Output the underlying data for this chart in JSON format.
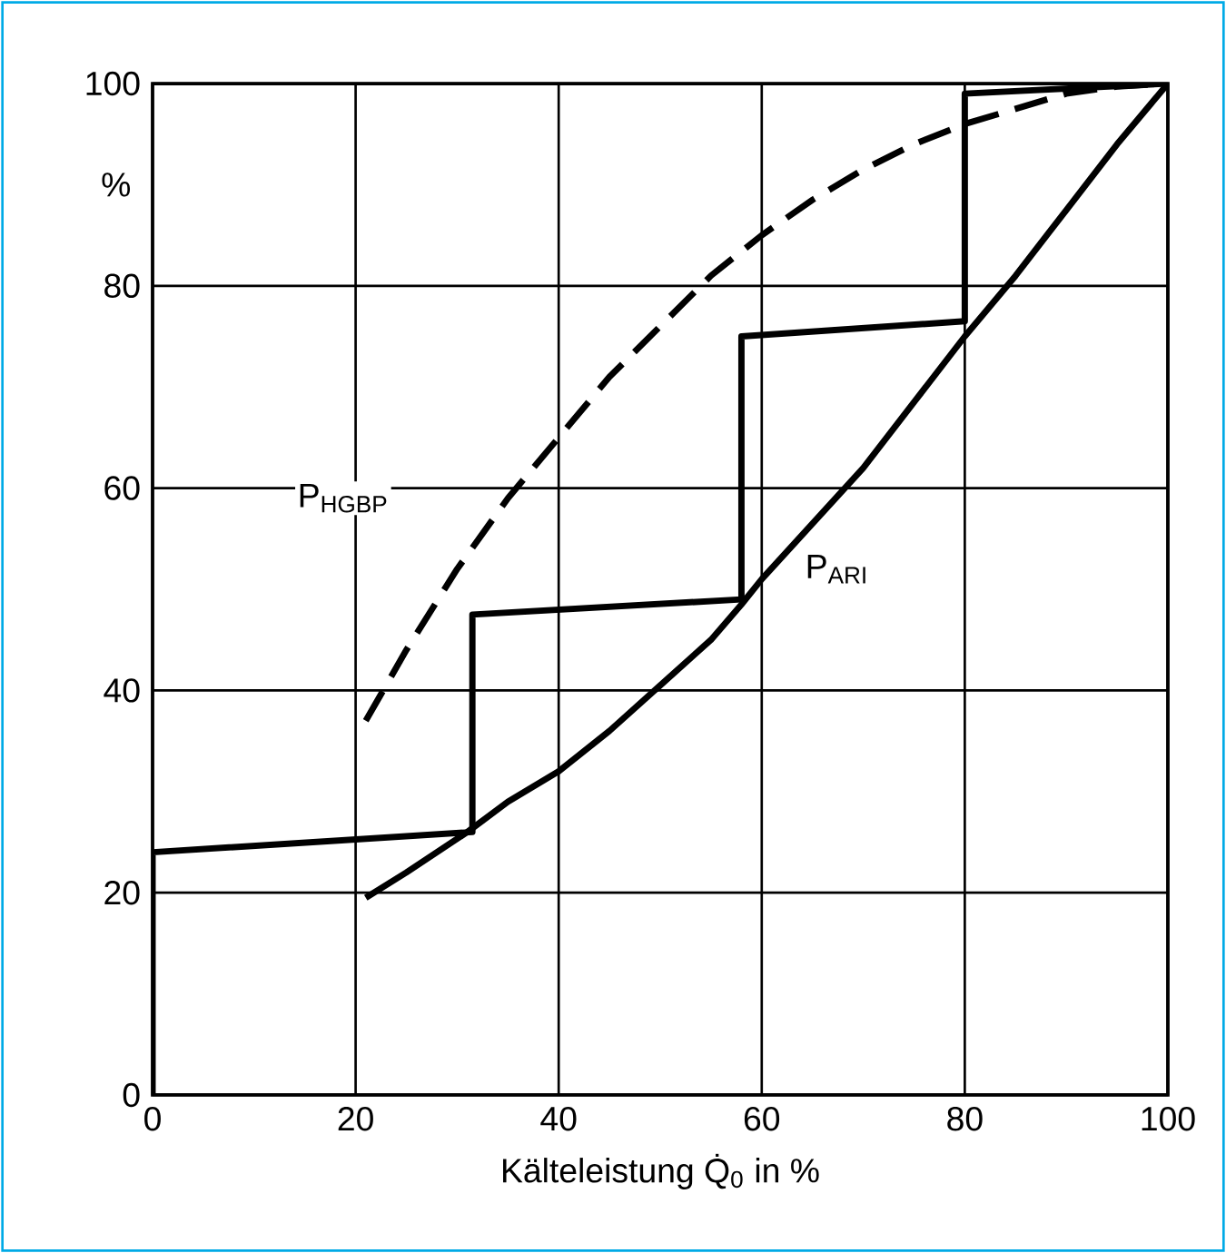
{
  "chart_data": {
    "type": "line",
    "xlabel": "Kälteleistung Q̇$_{0}$ in %",
    "ylabel": "%",
    "xlim": [
      0,
      100
    ],
    "ylim": [
      0,
      100
    ],
    "xticks": [
      0,
      20,
      40,
      60,
      80,
      100
    ],
    "yticks": [
      0,
      20,
      40,
      60,
      80,
      100
    ],
    "grid": true,
    "marker": "none",
    "annotations": [
      "P$_{HGBP}$",
      "P$_{ARI}$"
    ],
    "series": [
      {
        "color": "#000000",
        "line_style": "solid",
        "x": [
          0,
          0,
          31.5,
          31.5,
          58,
          58,
          80,
          80,
          100
        ],
        "values": [
          0,
          24,
          26,
          47.5,
          49,
          75,
          76.5,
          99,
          100
        ]
      },
      {
        "color": "#000000",
        "line_style": "solid",
        "x": [
          21,
          25,
          31,
          35,
          40,
          45,
          50,
          55,
          58,
          60,
          65,
          70,
          75,
          80,
          85,
          90,
          95,
          100
        ],
        "values": [
          19.5,
          22,
          26,
          29,
          32,
          36,
          40.5,
          45,
          48.5,
          51,
          56.5,
          62,
          68.5,
          75,
          81,
          87.5,
          94,
          100
        ]
      },
      {
        "color": "#000000",
        "line_style": "dashed",
        "x": [
          21,
          25,
          30,
          35,
          40,
          45,
          50,
          55,
          60,
          65,
          70,
          75,
          80,
          85,
          90,
          95,
          100
        ],
        "values": [
          37,
          44,
          52,
          59,
          65,
          71,
          76,
          81,
          85,
          88.5,
          91.5,
          94,
          96,
          97.5,
          99,
          99.7,
          100
        ]
      }
    ]
  }
}
